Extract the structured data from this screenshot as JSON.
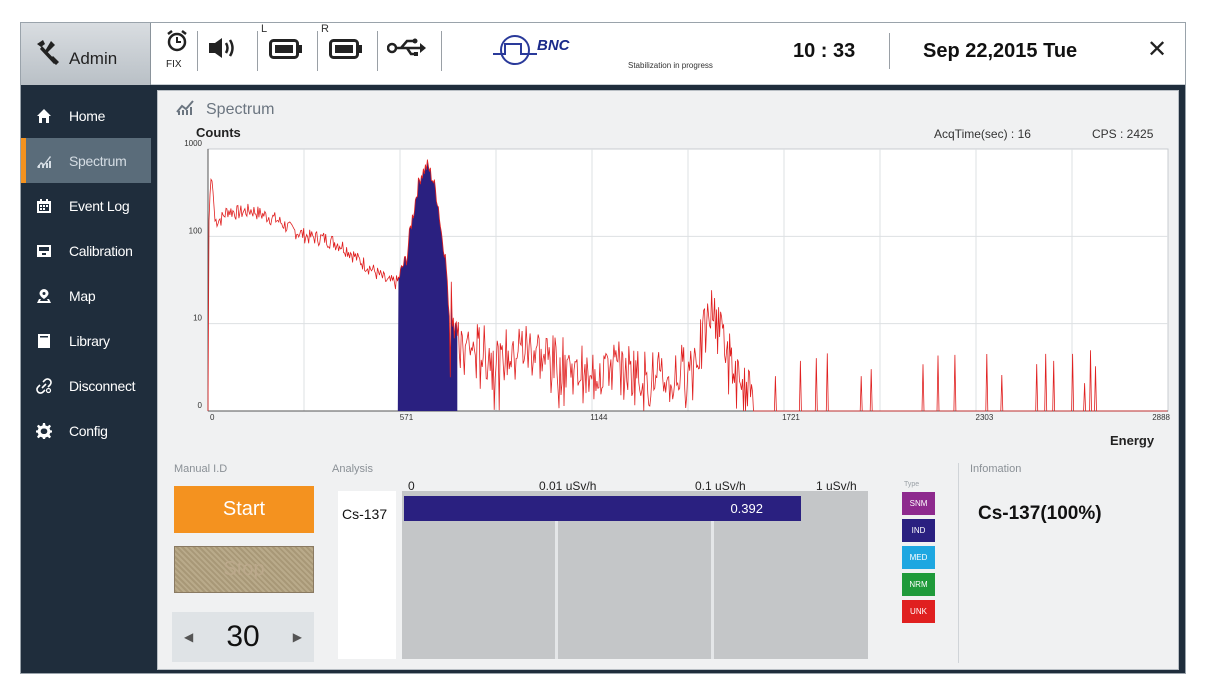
{
  "topbar": {
    "user": "Admin",
    "fix_label": "FIX",
    "left_battery_letter": "L",
    "right_battery_letter": "R",
    "logo_text": "BNC",
    "status": "Stabilization in progress",
    "time": "10 : 33",
    "date": "Sep 22,2015 Tue",
    "close_label": "✕"
  },
  "sidebar": {
    "items": [
      {
        "label": "Home",
        "icon": "home-icon"
      },
      {
        "label": "Spectrum",
        "icon": "chart-icon"
      },
      {
        "label": "Event Log",
        "icon": "calendar-icon"
      },
      {
        "label": "Calibration",
        "icon": "calibration-icon"
      },
      {
        "label": "Map",
        "icon": "map-pin-icon"
      },
      {
        "label": "Library",
        "icon": "book-icon"
      },
      {
        "label": "Disconnect",
        "icon": "link-icon"
      },
      {
        "label": "Config",
        "icon": "gear-icon"
      }
    ],
    "active_index": 1
  },
  "spectrum": {
    "title": "Spectrum",
    "acq_time": "AcqTime(sec) : 16",
    "cps": "CPS : 2425"
  },
  "chart_data": {
    "type": "line",
    "title": "",
    "xlabel": "Energy",
    "ylabel": "Counts",
    "y_scale": "log",
    "ylim": [
      0,
      1000
    ],
    "xlim": [
      0,
      2888
    ],
    "x_ticks": [
      "0",
      "571",
      "1144",
      "1721",
      "2303",
      "2888"
    ],
    "y_ticks": [
      "0",
      "10",
      "100",
      "1000"
    ],
    "grid": true,
    "line_color": "#e02020",
    "highlight_color": "#2a2080",
    "highlight_range": [
      571,
      750
    ],
    "series": [
      {
        "x": [
          0,
          10,
          20,
          40,
          60,
          80,
          100,
          130,
          160,
          200,
          250,
          300,
          350,
          400,
          450,
          500,
          540,
          571,
          600,
          620,
          640,
          660,
          680,
          700,
          720,
          750,
          800,
          850,
          900,
          950,
          1000,
          1050,
          1100,
          1150,
          1200,
          1250,
          1300,
          1350,
          1400,
          1450,
          1480,
          1500,
          1520,
          1540,
          1560,
          1580,
          1620,
          1700,
          1800,
          1900,
          2000,
          2100,
          2200,
          2303,
          2400,
          2500,
          2600,
          2700,
          2800,
          2888
        ],
        "y": [
          1,
          500,
          150,
          160,
          200,
          190,
          190,
          200,
          180,
          160,
          120,
          100,
          95,
          80,
          55,
          40,
          30,
          30,
          60,
          200,
          500,
          650,
          400,
          120,
          30,
          5,
          5,
          4,
          4,
          5,
          4,
          3,
          3,
          2,
          3,
          3,
          2,
          2,
          2,
          3,
          5,
          8,
          15,
          10,
          5,
          2,
          1,
          1,
          1,
          1,
          1,
          1,
          1,
          1,
          1,
          1,
          1,
          1,
          1,
          1
        ]
      }
    ]
  },
  "manual_id": {
    "label": "Manual I.D",
    "start_label": "Start",
    "stop_label": "Stop",
    "stepper_value": "30"
  },
  "analysis": {
    "label": "Analysis",
    "scale": [
      "0",
      "0.01 uSv/h",
      "0.1 uSv/h",
      "1 uSv/h"
    ],
    "nuclide": "Cs-137",
    "dose_value": "0.392",
    "dose_fraction": 0.86,
    "bar_color": "#2a2080"
  },
  "type_legend": {
    "title": "Type",
    "types": [
      {
        "label": "SNM",
        "color": "#8e2a8e"
      },
      {
        "label": "IND",
        "color": "#2a2080"
      },
      {
        "label": "MED",
        "color": "#1ea7e1"
      },
      {
        "label": "NRM",
        "color": "#1f9a3a"
      },
      {
        "label": "UNK",
        "color": "#e02020"
      }
    ]
  },
  "information": {
    "label": "Infomation",
    "result": "Cs-137(100%)"
  }
}
